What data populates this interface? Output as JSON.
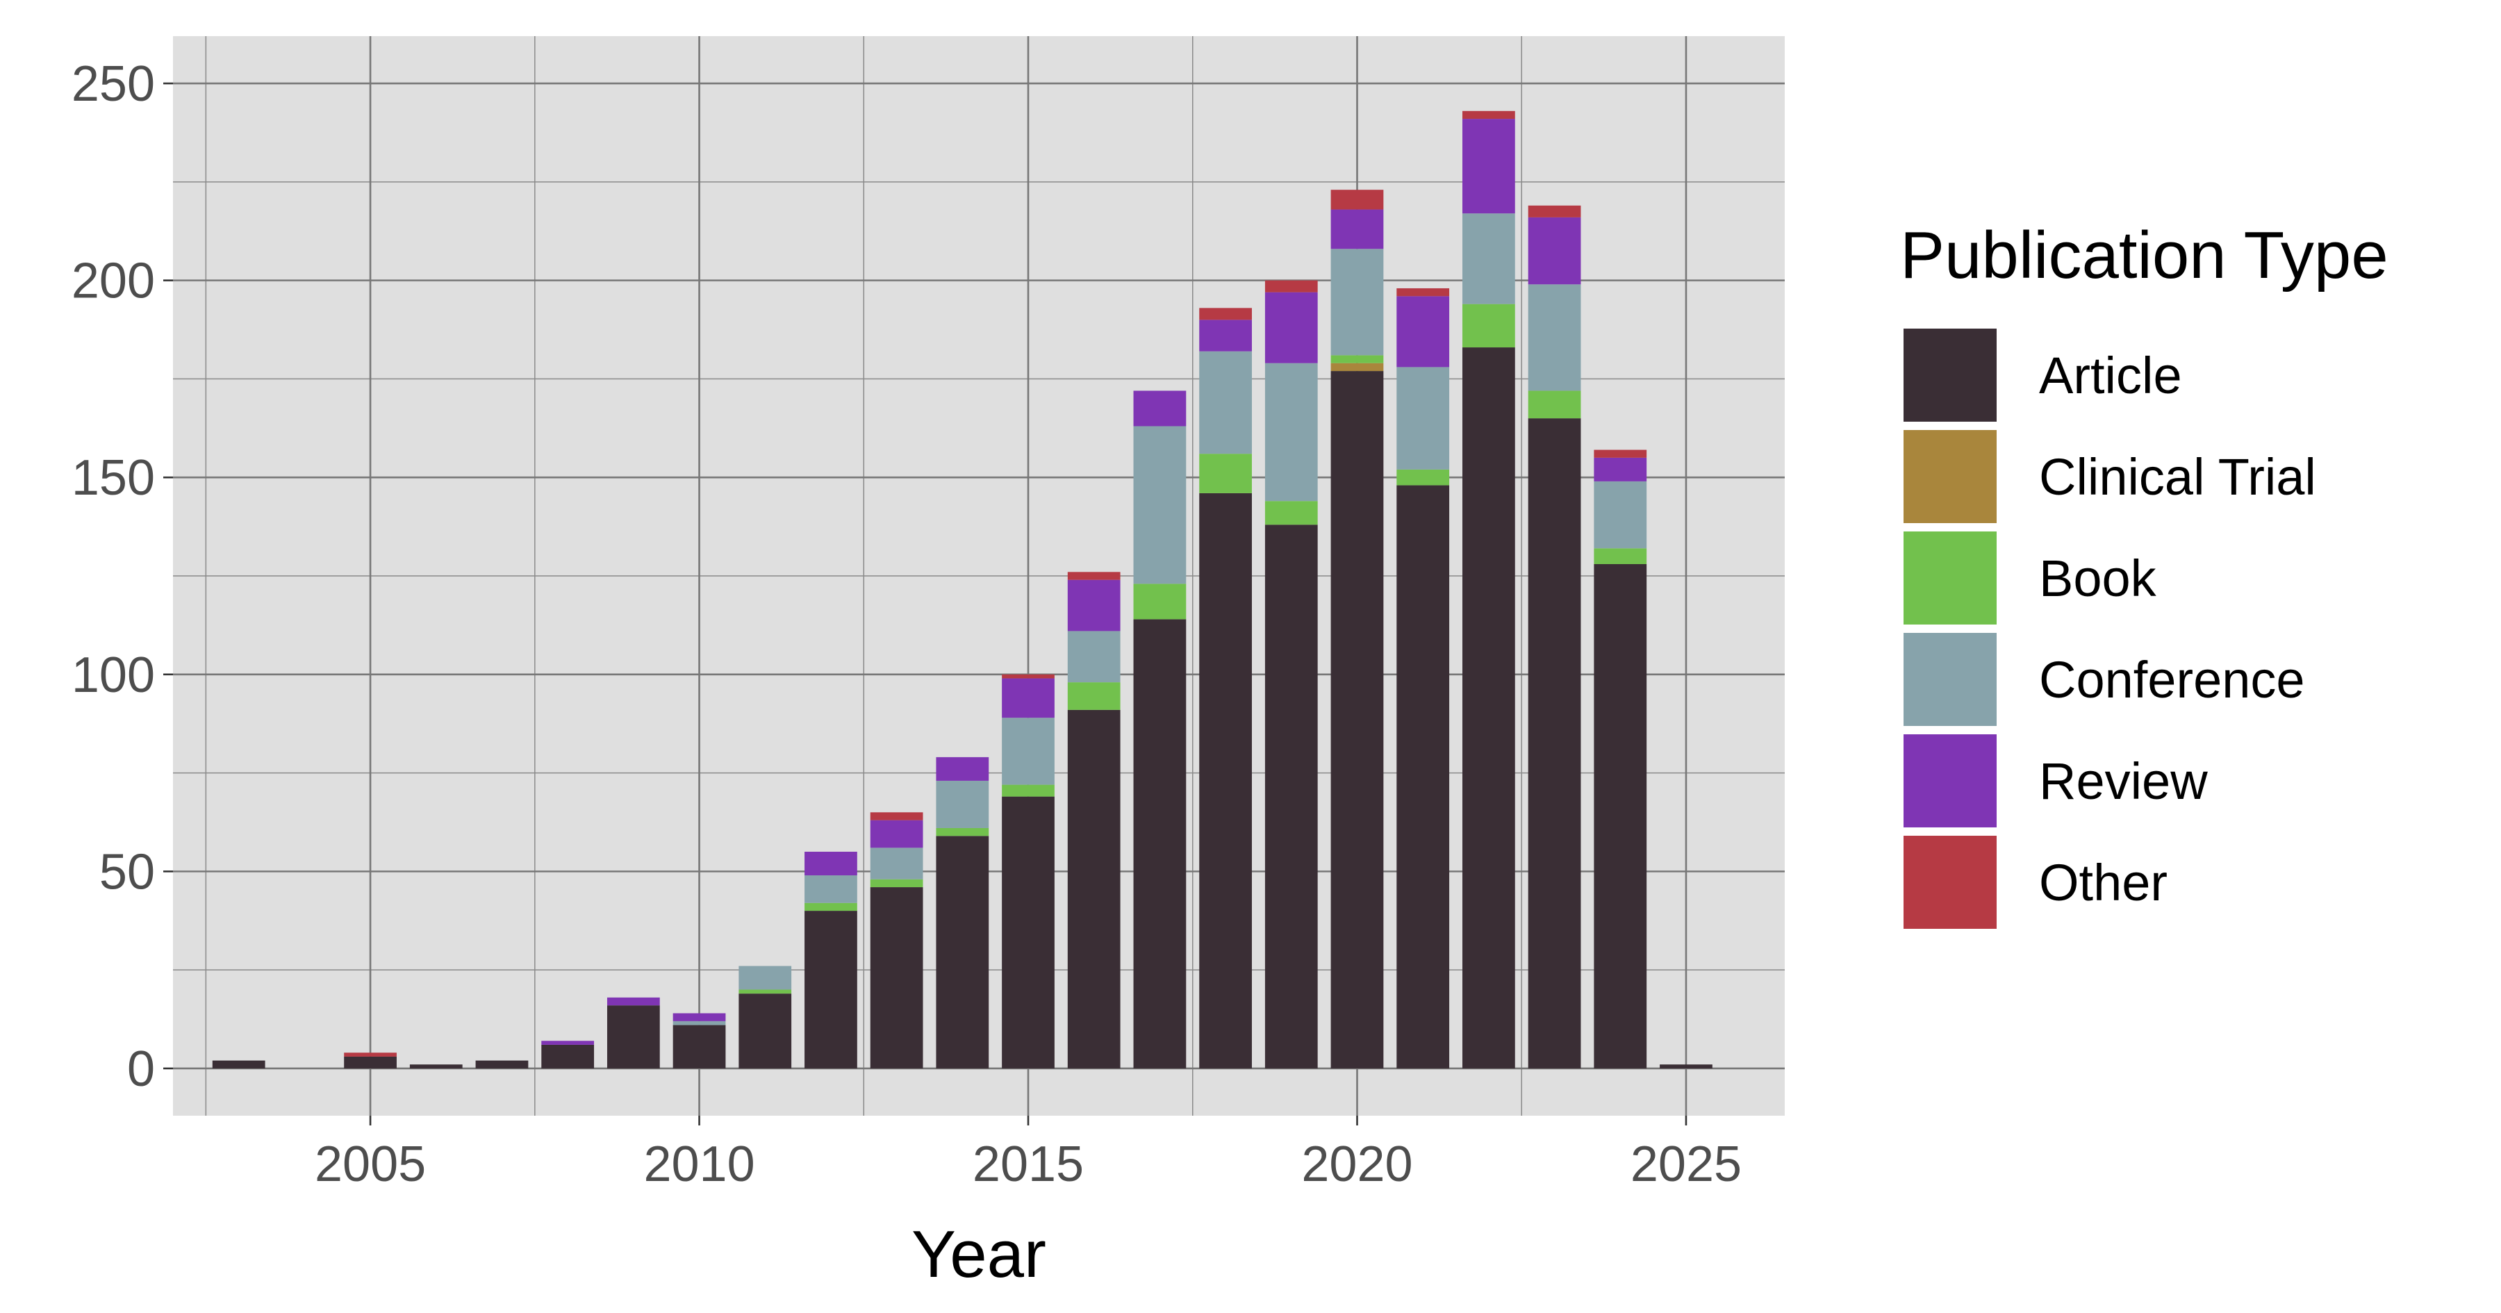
{
  "chart_data": {
    "type": "bar",
    "stacked": true,
    "xlabel": "Year",
    "ylabel": "",
    "title": "",
    "xlim": [
      2002,
      2026.5
    ],
    "ylim": [
      -12,
      262
    ],
    "x_ticks": [
      2005,
      2010,
      2015,
      2020,
      2025
    ],
    "y_ticks": [
      0,
      50,
      100,
      150,
      200,
      250
    ],
    "grid": true,
    "legend": {
      "title": "Publication Type",
      "position": "right"
    },
    "years": [
      2003,
      2005,
      2006,
      2007,
      2008,
      2009,
      2010,
      2011,
      2012,
      2013,
      2014,
      2015,
      2016,
      2017,
      2018,
      2019,
      2020,
      2021,
      2022,
      2023,
      2024,
      2025
    ],
    "series": [
      {
        "name": "Article",
        "color": "#3a2e35",
        "values": [
          2,
          3,
          1,
          2,
          6,
          16,
          11,
          19,
          40,
          46,
          59,
          69,
          91,
          114,
          146,
          138,
          177,
          148,
          183,
          165,
          128,
          1
        ]
      },
      {
        "name": "Clinical Trial",
        "color": "#a9863c",
        "values": [
          0,
          0,
          0,
          0,
          0,
          0,
          0,
          0,
          0,
          0,
          0,
          0,
          0,
          0,
          0,
          0,
          2,
          0,
          0,
          0,
          0,
          0
        ]
      },
      {
        "name": "Book",
        "color": "#72c14d",
        "values": [
          0,
          0,
          0,
          0,
          0,
          0,
          0,
          1,
          2,
          2,
          2,
          3,
          7,
          9,
          10,
          6,
          2,
          4,
          11,
          7,
          4,
          0
        ]
      },
      {
        "name": "Conference",
        "color": "#87a3ab",
        "values": [
          0,
          0,
          0,
          0,
          0,
          0,
          1,
          6,
          7,
          8,
          12,
          17,
          13,
          40,
          26,
          35,
          27,
          26,
          23,
          27,
          17,
          0
        ]
      },
      {
        "name": "Review",
        "color": "#7f35b4",
        "values": [
          0,
          0,
          0,
          0,
          1,
          2,
          2,
          0,
          6,
          7,
          6,
          10,
          13,
          9,
          8,
          18,
          10,
          18,
          24,
          17,
          6,
          0
        ]
      },
      {
        "name": "Other",
        "color": "#b63a44",
        "values": [
          0,
          1,
          0,
          0,
          0,
          0,
          0,
          0,
          0,
          2,
          0,
          1,
          2,
          0,
          3,
          3,
          5,
          2,
          2,
          3,
          2,
          0
        ]
      }
    ]
  }
}
